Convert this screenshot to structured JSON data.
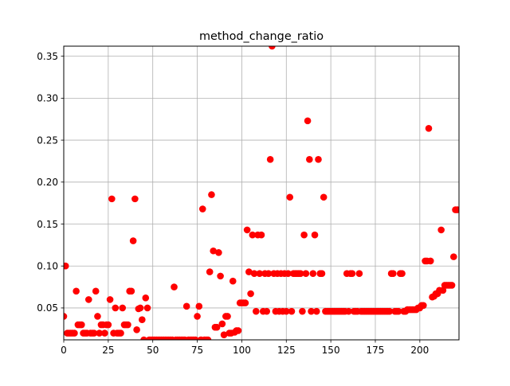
{
  "chart_data": {
    "type": "scatter",
    "title": "method_change_ratio",
    "xlabel": "",
    "ylabel": "",
    "xlim": [
      0,
      222
    ],
    "ylim": [
      0.012,
      0.362
    ],
    "grid": true,
    "x_ticks": [
      0,
      25,
      50,
      75,
      100,
      125,
      150,
      175,
      200
    ],
    "x_tick_labels": [
      "0",
      "25",
      "50",
      "75",
      "100",
      "125",
      "150",
      "175",
      "200"
    ],
    "y_ticks": [
      0.05,
      0.1,
      0.15,
      0.2,
      0.25,
      0.3,
      0.35
    ],
    "y_tick_labels": [
      "0.05",
      "0.10",
      "0.15",
      "0.20",
      "0.25",
      "0.30",
      "0.35"
    ],
    "colors": {
      "marker": "#ff0000",
      "grid": "#b0b0b0",
      "axes": "#000000"
    },
    "series": [
      {
        "points": [
          [
            0,
            0.04
          ],
          [
            1,
            0.1
          ],
          [
            2,
            0.02
          ],
          [
            3,
            0.02
          ],
          [
            4,
            0.02
          ],
          [
            5,
            0.02
          ],
          [
            6,
            0.02
          ],
          [
            7,
            0.07
          ],
          [
            8,
            0.03
          ],
          [
            9,
            0.03
          ],
          [
            10,
            0.03
          ],
          [
            11,
            0.02
          ],
          [
            12,
            0.02
          ],
          [
            13,
            0.02
          ],
          [
            14,
            0.06
          ],
          [
            15,
            0.02
          ],
          [
            16,
            0.02
          ],
          [
            17,
            0.02
          ],
          [
            18,
            0.07
          ],
          [
            19,
            0.04
          ],
          [
            20,
            0.02
          ],
          [
            21,
            0.03
          ],
          [
            22,
            0.03
          ],
          [
            23,
            0.02
          ],
          [
            24,
            0.03
          ],
          [
            25,
            0.03
          ],
          [
            26,
            0.06
          ],
          [
            27,
            0.18
          ],
          [
            28,
            0.02
          ],
          [
            29,
            0.05
          ],
          [
            30,
            0.02
          ],
          [
            31,
            0.02
          ],
          [
            32,
            0.02
          ],
          [
            33,
            0.05
          ],
          [
            34,
            0.03
          ],
          [
            35,
            0.03
          ],
          [
            36,
            0.03
          ],
          [
            37,
            0.07
          ],
          [
            38,
            0.07
          ],
          [
            39,
            0.13
          ],
          [
            40,
            0.18
          ],
          [
            41,
            0.024
          ],
          [
            42,
            0.049
          ],
          [
            43,
            0.05
          ],
          [
            44,
            0.036
          ],
          [
            45,
            0.012
          ],
          [
            46,
            0.062
          ],
          [
            47,
            0.05
          ],
          [
            48,
            0.012
          ],
          [
            49,
            0.012
          ],
          [
            50,
            0.012
          ],
          [
            51,
            0.012
          ],
          [
            52,
            0.012
          ],
          [
            53,
            0.012
          ],
          [
            54,
            0.012
          ],
          [
            55,
            0.012
          ],
          [
            56,
            0.012
          ],
          [
            57,
            0.012
          ],
          [
            58,
            0.012
          ],
          [
            59,
            0.012
          ],
          [
            60,
            0.012
          ],
          [
            61,
            0.012
          ],
          [
            62,
            0.075
          ],
          [
            63,
            0.012
          ],
          [
            64,
            0.012
          ],
          [
            65,
            0.012
          ],
          [
            66,
            0.012
          ],
          [
            67,
            0.012
          ],
          [
            68,
            0.012
          ],
          [
            69,
            0.052
          ],
          [
            70,
            0.012
          ],
          [
            71,
            0.012
          ],
          [
            72,
            0.012
          ],
          [
            73,
            0.012
          ],
          [
            74,
            0.012
          ],
          [
            75,
            0.04
          ],
          [
            76,
            0.052
          ],
          [
            77,
            0.012
          ],
          [
            78,
            0.168
          ],
          [
            79,
            0.012
          ],
          [
            80,
            0.012
          ],
          [
            81,
            0.012
          ],
          [
            82,
            0.093
          ],
          [
            83,
            0.185
          ],
          [
            84,
            0.118
          ],
          [
            85,
            0.027
          ],
          [
            86,
            0.027
          ],
          [
            87,
            0.116
          ],
          [
            88,
            0.088
          ],
          [
            89,
            0.031
          ],
          [
            90,
            0.018
          ],
          [
            91,
            0.04
          ],
          [
            92,
            0.04
          ],
          [
            93,
            0.02
          ],
          [
            94,
            0.02
          ],
          [
            95,
            0.082
          ],
          [
            96,
            0.021
          ],
          [
            97,
            0.023
          ],
          [
            98,
            0.023
          ],
          [
            99,
            0.056
          ],
          [
            100,
            0.056
          ],
          [
            101,
            0.056
          ],
          [
            102,
            0.056
          ],
          [
            103,
            0.143
          ],
          [
            104,
            0.093
          ],
          [
            105,
            0.067
          ],
          [
            106,
            0.137
          ],
          [
            107,
            0.091
          ],
          [
            108,
            0.046
          ],
          [
            109,
            0.137
          ],
          [
            110,
            0.091
          ],
          [
            111,
            0.137
          ],
          [
            112,
            0.046
          ],
          [
            113,
            0.091
          ],
          [
            114,
            0.046
          ],
          [
            115,
            0.091
          ],
          [
            116,
            0.227
          ],
          [
            117,
            0.362
          ],
          [
            118,
            0.091
          ],
          [
            119,
            0.046
          ],
          [
            120,
            0.091
          ],
          [
            121,
            0.046
          ],
          [
            122,
            0.091
          ],
          [
            123,
            0.046
          ],
          [
            124,
            0.091
          ],
          [
            125,
            0.046
          ],
          [
            126,
            0.091
          ],
          [
            127,
            0.182
          ],
          [
            128,
            0.046
          ],
          [
            129,
            0.091
          ],
          [
            130,
            0.091
          ],
          [
            131,
            0.091
          ],
          [
            132,
            0.091
          ],
          [
            133,
            0.091
          ],
          [
            134,
            0.046
          ],
          [
            135,
            0.137
          ],
          [
            136,
            0.091
          ],
          [
            137,
            0.273
          ],
          [
            138,
            0.227
          ],
          [
            139,
            0.046
          ],
          [
            140,
            0.091
          ],
          [
            141,
            0.137
          ],
          [
            142,
            0.046
          ],
          [
            143,
            0.227
          ],
          [
            144,
            0.091
          ],
          [
            145,
            0.091
          ],
          [
            146,
            0.182
          ],
          [
            147,
            0.046
          ],
          [
            148,
            0.046
          ],
          [
            149,
            0.046
          ],
          [
            150,
            0.046
          ],
          [
            151,
            0.046
          ],
          [
            152,
            0.046
          ],
          [
            153,
            0.046
          ],
          [
            154,
            0.046
          ],
          [
            155,
            0.046
          ],
          [
            156,
            0.046
          ],
          [
            157,
            0.046
          ],
          [
            158,
            0.046
          ],
          [
            159,
            0.091
          ],
          [
            160,
            0.046
          ],
          [
            161,
            0.091
          ],
          [
            162,
            0.091
          ],
          [
            163,
            0.046
          ],
          [
            164,
            0.046
          ],
          [
            165,
            0.046
          ],
          [
            166,
            0.091
          ],
          [
            167,
            0.046
          ],
          [
            168,
            0.046
          ],
          [
            169,
            0.046
          ],
          [
            170,
            0.046
          ],
          [
            171,
            0.046
          ],
          [
            172,
            0.046
          ],
          [
            173,
            0.046
          ],
          [
            174,
            0.046
          ],
          [
            175,
            0.046
          ],
          [
            176,
            0.046
          ],
          [
            177,
            0.046
          ],
          [
            178,
            0.046
          ],
          [
            179,
            0.046
          ],
          [
            180,
            0.046
          ],
          [
            181,
            0.046
          ],
          [
            182,
            0.046
          ],
          [
            183,
            0.046
          ],
          [
            184,
            0.091
          ],
          [
            185,
            0.091
          ],
          [
            186,
            0.046
          ],
          [
            187,
            0.046
          ],
          [
            188,
            0.046
          ],
          [
            189,
            0.091
          ],
          [
            190,
            0.091
          ],
          [
            191,
            0.046
          ],
          [
            192,
            0.046
          ],
          [
            193,
            0.048
          ],
          [
            194,
            0.048
          ],
          [
            195,
            0.048
          ],
          [
            196,
            0.048
          ],
          [
            197,
            0.048
          ],
          [
            198,
            0.048
          ],
          [
            199,
            0.05
          ],
          [
            200,
            0.05
          ],
          [
            201,
            0.053
          ],
          [
            202,
            0.053
          ],
          [
            203,
            0.106
          ],
          [
            204,
            0.106
          ],
          [
            205,
            0.264
          ],
          [
            206,
            0.106
          ],
          [
            207,
            0.063
          ],
          [
            208,
            0.064
          ],
          [
            209,
            0.067
          ],
          [
            210,
            0.067
          ],
          [
            211,
            0.071
          ],
          [
            212,
            0.143
          ],
          [
            213,
            0.071
          ],
          [
            214,
            0.077
          ],
          [
            215,
            0.077
          ],
          [
            216,
            0.077
          ],
          [
            217,
            0.077
          ],
          [
            218,
            0.077
          ],
          [
            219,
            0.111
          ],
          [
            220,
            0.167
          ],
          [
            221,
            0.167
          ]
        ]
      }
    ]
  }
}
